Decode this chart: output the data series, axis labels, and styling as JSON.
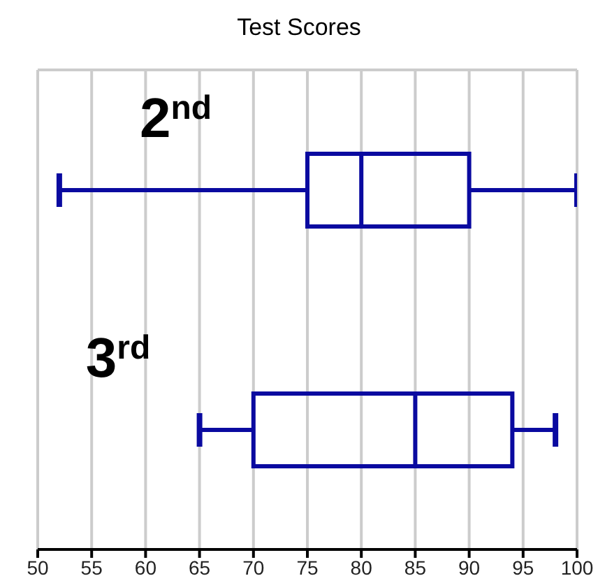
{
  "chart_data": {
    "type": "box",
    "title": "Test Scores",
    "orientation": "horizontal",
    "categories": [
      "2$^{nd}$",
      "3$^{rd}$"
    ],
    "series": [
      {
        "color": "#0a0aa0",
        "boxes": [
          {
            "low": 52,
            "q1": 75,
            "median": 80,
            "q3": 90,
            "high": 100
          },
          {
            "low": 65,
            "q1": 70,
            "median": 85,
            "q3": 94,
            "high": 98
          }
        ]
      }
    ],
    "xlim": [
      50,
      100
    ],
    "xticks": [
      50,
      55,
      60,
      65,
      70,
      75,
      80,
      85,
      90,
      95,
      100
    ],
    "grid": true,
    "tick_labels": "x"
  }
}
